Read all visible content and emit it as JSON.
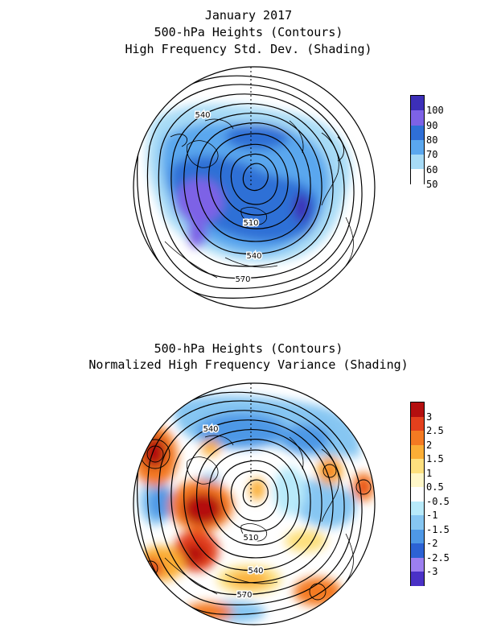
{
  "top_panel": {
    "title_lines": [
      "January 2017",
      "500-hPa Heights (Contours)",
      "High Frequency Std. Dev. (Shading)"
    ],
    "contour_labels": [
      "540",
      "510",
      "540",
      "570"
    ],
    "legend": {
      "labels": [
        "100",
        "90",
        "80",
        "70",
        "60",
        "50"
      ],
      "colors": [
        "#3c2fb8",
        "#7d62e6",
        "#2f6fd6",
        "#5aa7ee",
        "#a7dbf6",
        "#ffffff"
      ]
    }
  },
  "bottom_panel": {
    "title_lines": [
      "500-hPa Heights (Contours)",
      "Normalized High Frequency Variance (Shading)"
    ],
    "contour_labels": [
      "540",
      "510",
      "540",
      "570"
    ],
    "legend": {
      "labels": [
        "3",
        "2.5",
        "2",
        "1.5",
        "1",
        "0.5",
        "-0.5",
        "-1",
        "-1.5",
        "-2",
        "-2.5",
        "-3"
      ],
      "colors": [
        "#b40f0f",
        "#e3401d",
        "#f47a22",
        "#fbae36",
        "#fde07e",
        "#fff7c9",
        "#ffffff",
        "#b8eafa",
        "#86c6f2",
        "#4e98e6",
        "#2c62d4",
        "#9c7ff0",
        "#4a31c6"
      ]
    }
  }
}
